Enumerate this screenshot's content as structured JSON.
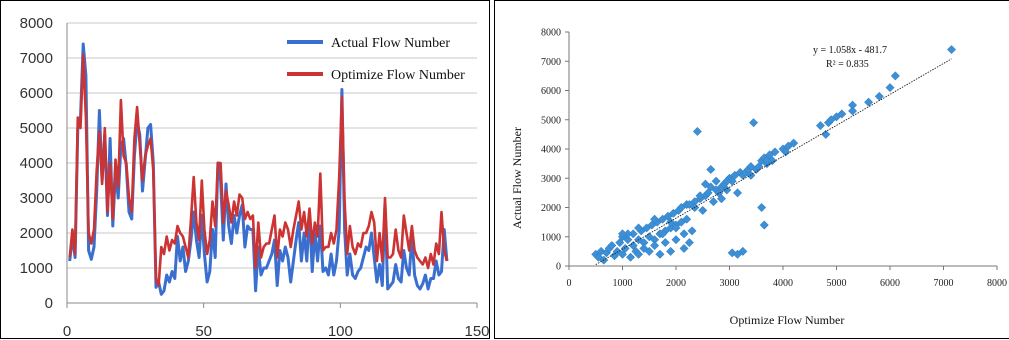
{
  "chart_data": [
    {
      "type": "line",
      "title": "",
      "xlabel": "",
      "ylabel": "",
      "xlim": [
        0,
        150
      ],
      "ylim": [
        0,
        8000
      ],
      "x_ticks": [
        "0",
        "50",
        "100",
        "150"
      ],
      "y_ticks": [
        "0",
        "1000",
        "2000",
        "3000",
        "4000",
        "5000",
        "6000",
        "7000",
        "8000"
      ],
      "grid": "horizontal",
      "legend_position": "top-right",
      "series": [
        {
          "name": "Actual Flow Number",
          "color": "#3a6fd0",
          "values": [
            1200,
            1900,
            1300,
            5000,
            5300,
            7400,
            6500,
            1500,
            1250,
            1600,
            3200,
            5500,
            3500,
            4800,
            2500,
            4700,
            2200,
            3800,
            3000,
            4500,
            4700,
            3900,
            2600,
            2400,
            4200,
            5200,
            4800,
            3200,
            4100,
            5000,
            5100,
            4000,
            450,
            600,
            250,
            350,
            800,
            600,
            900,
            700,
            1900,
            1200,
            1600,
            900,
            1200,
            1800,
            2600,
            1800,
            1300,
            2500,
            1400,
            600,
            900,
            2100,
            1300,
            4000,
            3500,
            1800,
            3400,
            2200,
            1700,
            2500,
            2000,
            2500,
            2800,
            1600,
            2200,
            2100,
            2100,
            350,
            1600,
            800,
            1000,
            1000,
            1200,
            1400,
            1800,
            500,
            1500,
            1200,
            1600,
            1300,
            600,
            1200,
            1800,
            2300,
            1200,
            2000,
            1200,
            2600,
            900,
            2000,
            1200,
            2200,
            900,
            1000,
            800,
            1400,
            800,
            1200,
            2100,
            6100,
            2100,
            800,
            1400,
            800,
            700,
            900,
            1000,
            1300,
            1600,
            1500,
            2000,
            1300,
            600,
            1100,
            500,
            2800,
            400,
            500,
            600,
            1100,
            700,
            600,
            1500,
            1000,
            800,
            1900,
            800,
            500,
            400,
            550,
            800,
            400,
            700,
            700,
            1200,
            800,
            900,
            2100,
            1200
          ]
        },
        {
          "name": "Optimize Flow Number",
          "color": "#cc3333",
          "values": [
            1300,
            2100,
            1400,
            5300,
            5000,
            7100,
            5300,
            2000,
            1700,
            2100,
            3800,
            4900,
            3400,
            5000,
            2600,
            4000,
            2400,
            4100,
            3300,
            5800,
            4200,
            4000,
            3000,
            2600,
            4700,
            5600,
            4500,
            3500,
            4200,
            4500,
            4700,
            3800,
            700,
            500,
            1600,
            1400,
            1900,
            1500,
            1800,
            1700,
            2200,
            2000,
            1900,
            1600,
            1300,
            2400,
            3600,
            2300,
            1800,
            3500,
            2100,
            1400,
            1800,
            2900,
            2200,
            4000,
            4000,
            2300,
            3200,
            2800,
            2300,
            2900,
            2500,
            3100,
            3000,
            2400,
            2600,
            2400,
            2500,
            1000,
            2300,
            1300,
            1600,
            1700,
            1700,
            2100,
            2500,
            1300,
            2100,
            1900,
            2300,
            2100,
            1600,
            2100,
            2500,
            2900,
            2100,
            2600,
            1900,
            2700,
            1700,
            2300,
            1900,
            3700,
            1500,
            1600,
            1600,
            2000,
            1700,
            2100,
            3600,
            5900,
            2900,
            1400,
            2200,
            1600,
            1400,
            1700,
            1600,
            2000,
            2000,
            2200,
            2600,
            2300,
            1200,
            2000,
            1200,
            3000,
            1300,
            1300,
            1400,
            2100,
            1500,
            1300,
            2500,
            2000,
            1500,
            2200,
            1500,
            1300,
            1200,
            1100,
            1300,
            1000,
            1400,
            1100,
            1700,
            1400,
            2600,
            1500,
            1200
          ]
        }
      ]
    },
    {
      "type": "scatter",
      "title": "",
      "xlabel": "Optimize Flow Number",
      "ylabel": "Actual Flow Number",
      "xlim": [
        0,
        8000
      ],
      "ylim": [
        0,
        8000
      ],
      "x_ticks": [
        "0",
        "1000",
        "2000",
        "3000",
        "4000",
        "5000",
        "6000",
        "7000",
        "8000"
      ],
      "y_ticks": [
        "0",
        "1000",
        "2000",
        "3000",
        "4000",
        "5000",
        "6000",
        "7000",
        "8000"
      ],
      "grid": "none",
      "marker_color": "#3d8fd6",
      "trendline": {
        "equation": "y = 1.058x - 481.7",
        "r_squared": "R² = 0.835",
        "slope": 1.058,
        "intercept": -481.7,
        "x_range": [
          500,
          7150
        ]
      },
      "points": [
        [
          500,
          400
        ],
        [
          550,
          300
        ],
        [
          600,
          500
        ],
        [
          650,
          200
        ],
        [
          700,
          450
        ],
        [
          750,
          600
        ],
        [
          800,
          700
        ],
        [
          850,
          350
        ],
        [
          900,
          500
        ],
        [
          950,
          800
        ],
        [
          1000,
          400
        ],
        [
          1000,
          1000
        ],
        [
          1050,
          600
        ],
        [
          1100,
          900
        ],
        [
          1150,
          300
        ],
        [
          1200,
          700
        ],
        [
          1200,
          1100
        ],
        [
          1250,
          500
        ],
        [
          1300,
          900
        ],
        [
          1300,
          400
        ],
        [
          1350,
          1200
        ],
        [
          1400,
          800
        ],
        [
          1400,
          600
        ],
        [
          1450,
          1300
        ],
        [
          1500,
          1000
        ],
        [
          1500,
          500
        ],
        [
          1550,
          1400
        ],
        [
          1600,
          900
        ],
        [
          1600,
          700
        ],
        [
          1650,
          1500
        ],
        [
          1700,
          1100
        ],
        [
          1700,
          400
        ],
        [
          1750,
          1600
        ],
        [
          1800,
          1200
        ],
        [
          1800,
          800
        ],
        [
          1850,
          1700
        ],
        [
          1900,
          1300
        ],
        [
          1900,
          500
        ],
        [
          1950,
          1800
        ],
        [
          2000,
          1400
        ],
        [
          2000,
          900
        ],
        [
          2050,
          1900
        ],
        [
          2100,
          1500
        ],
        [
          2100,
          2000
        ],
        [
          2150,
          1100
        ],
        [
          2150,
          600
        ],
        [
          2200,
          2100
        ],
        [
          2200,
          1600
        ],
        [
          2250,
          800
        ],
        [
          2300,
          1200
        ],
        [
          2350,
          2200
        ],
        [
          2400,
          4600
        ],
        [
          2450,
          2300
        ],
        [
          2500,
          1900
        ],
        [
          2550,
          2400
        ],
        [
          2600,
          2500
        ],
        [
          2650,
          3300
        ],
        [
          2650,
          2700
        ],
        [
          2700,
          2200
        ],
        [
          2750,
          2600
        ],
        [
          2800,
          2500
        ],
        [
          2850,
          2700
        ],
        [
          2900,
          2800
        ],
        [
          2950,
          2600
        ],
        [
          3000,
          3000
        ],
        [
          3050,
          2900
        ],
        [
          3100,
          3100
        ],
        [
          3150,
          2500
        ],
        [
          3200,
          3200
        ],
        [
          3250,
          3100
        ],
        [
          3300,
          3200
        ],
        [
          3350,
          3300
        ],
        [
          3400,
          3400
        ],
        [
          3450,
          4900
        ],
        [
          3500,
          3300
        ],
        [
          3550,
          3400
        ],
        [
          3600,
          3600
        ],
        [
          3650,
          3700
        ],
        [
          3650,
          1400
        ],
        [
          3600,
          2000
        ],
        [
          3700,
          3500
        ],
        [
          3750,
          3800
        ],
        [
          3800,
          3600
        ],
        [
          3850,
          3900
        ],
        [
          4000,
          4000
        ],
        [
          4100,
          4100
        ],
        [
          4200,
          4200
        ],
        [
          4700,
          4800
        ],
        [
          4800,
          4500
        ],
        [
          4850,
          4900
        ],
        [
          4900,
          5000
        ],
        [
          5000,
          5100
        ],
        [
          5100,
          5200
        ],
        [
          5300,
          5500
        ],
        [
          5300,
          5300
        ],
        [
          5600,
          5600
        ],
        [
          5800,
          5800
        ],
        [
          6000,
          6100
        ],
        [
          6100,
          6500
        ],
        [
          7150,
          7400
        ],
        [
          3050,
          450
        ],
        [
          3150,
          400
        ],
        [
          3250,
          500
        ],
        [
          1900,
          1500
        ],
        [
          2000,
          1300
        ],
        [
          1600,
          1600
        ],
        [
          1750,
          1100
        ],
        [
          1300,
          1300
        ],
        [
          1100,
          1100
        ],
        [
          1000,
          1100
        ],
        [
          2250,
          2100
        ],
        [
          2350,
          2000
        ],
        [
          2450,
          2400
        ],
        [
          2550,
          2800
        ],
        [
          2750,
          2900
        ],
        [
          2850,
          2300
        ],
        [
          2950,
          2900
        ],
        [
          3400,
          3100
        ],
        [
          3700,
          3600
        ],
        [
          4050,
          3900
        ]
      ]
    }
  ]
}
